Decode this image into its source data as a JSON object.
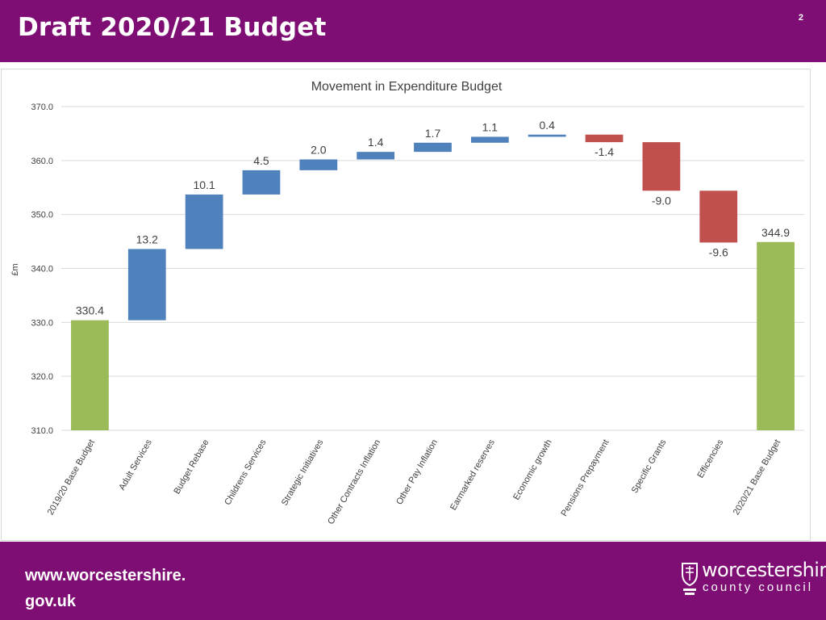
{
  "slide": {
    "title": "Draft 2020/21 Budget",
    "page_number": "2"
  },
  "footer": {
    "url_line1": "www.worcestershire.",
    "url_line2": "gov.uk",
    "logo_line1": "worcestershire",
    "logo_line2": "county council"
  },
  "colors": {
    "brand": "#7E0E74",
    "increase": "#4F81BD",
    "decrease": "#C0504D",
    "total": "#9BBB59"
  },
  "chart_data": {
    "type": "waterfall",
    "title": "Movement in Expenditure Budget",
    "ylabel": "£m",
    "xlabel": "",
    "ylim": [
      310,
      370
    ],
    "yticks": [
      "310.0",
      "320.0",
      "330.0",
      "340.0",
      "350.0",
      "360.0",
      "370.0"
    ],
    "grid": true,
    "categories": [
      "2019/20 Base Budget",
      "Adult Services",
      "Budget Rebase",
      "Childrens Services",
      "Strategic Initiatives",
      "Other Contracts Inflation",
      "Other Pay Inflation",
      "Earmarked reserves",
      "Economic growth",
      "Pensions Prepayment",
      "Specific Grants",
      "Efficencies",
      "2020/21 Base Budget"
    ],
    "values": [
      330.4,
      13.2,
      10.1,
      4.5,
      2.0,
      1.4,
      1.7,
      1.1,
      0.4,
      -1.4,
      -9.0,
      -9.6,
      344.9
    ],
    "labels": [
      "330.4",
      "13.2",
      "10.1",
      "4.5",
      "2.0",
      "1.4",
      "1.7",
      "1.1",
      "0.4",
      "-1.4",
      "-9.0",
      "-9.6",
      "344.9"
    ],
    "kinds": [
      "total",
      "increase",
      "increase",
      "increase",
      "increase",
      "increase",
      "increase",
      "increase",
      "increase",
      "decrease",
      "decrease",
      "decrease",
      "total"
    ]
  }
}
